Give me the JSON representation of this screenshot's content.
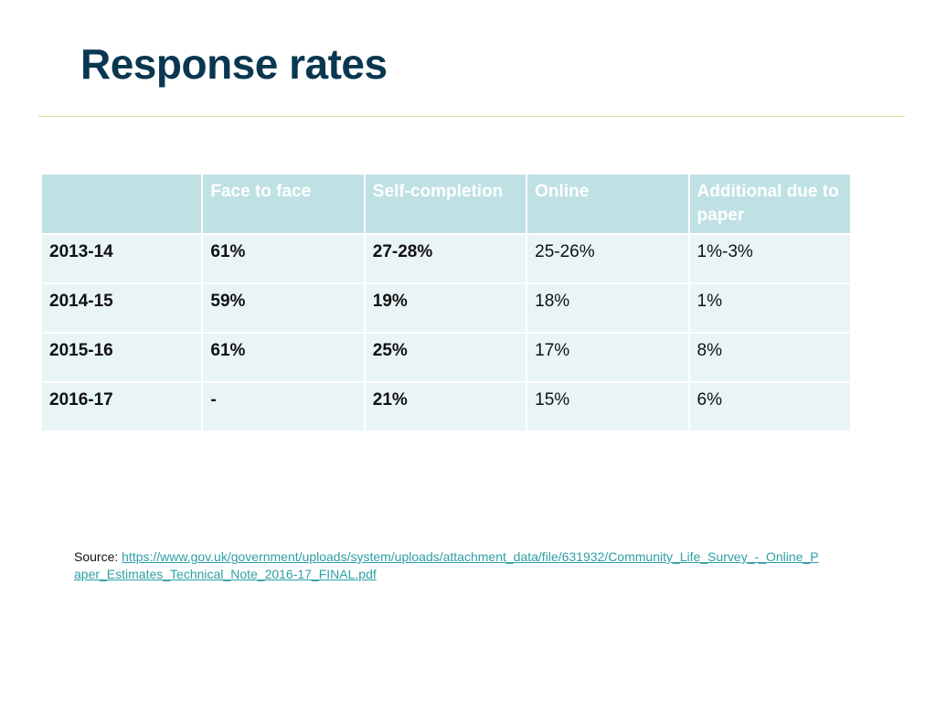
{
  "slide": {
    "title": "Response rates"
  },
  "table": {
    "headers": [
      "",
      "Face to face",
      "Self-completion",
      "Online",
      "Additional due to paper"
    ],
    "rows": [
      {
        "year": "2013-14",
        "face_to_face": "61%",
        "self_completion": "27-28%",
        "online": "25-26%",
        "additional_paper": "1%-3%"
      },
      {
        "year": "2014-15",
        "face_to_face": "59%",
        "self_completion": "19%",
        "online": "18%",
        "additional_paper": "1%"
      },
      {
        "year": "2015-16",
        "face_to_face": "61%",
        "self_completion": "25%",
        "online": "17%",
        "additional_paper": "8%"
      },
      {
        "year": "2016-17",
        "face_to_face": "-",
        "self_completion": "21%",
        "online": "15%",
        "additional_paper": "6%"
      }
    ]
  },
  "source": {
    "label": "Source: ",
    "link_text": "https://www.gov.uk/government/uploads/system/uploads/attachment_data/file/631932/Community_Life_Survey_-_Online_Paper_Estimates_Technical_Note_2016-17_FINAL.pdf"
  },
  "colors": {
    "title": "#0a3750",
    "rule": "#d6e49a",
    "header_bg": "#bfe1e4",
    "row_bg": "#e8f4f5",
    "link": "#2e9fa6"
  }
}
